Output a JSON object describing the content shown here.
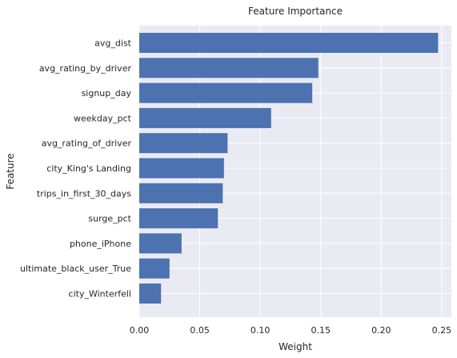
{
  "chart_data": {
    "type": "bar",
    "orientation": "horizontal",
    "title": "Feature Importance",
    "xlabel": "Weight",
    "ylabel": "Feature",
    "xlim": [
      0,
      0.258
    ],
    "xticks": [
      0.0,
      0.05,
      0.1,
      0.15,
      0.2,
      0.25
    ],
    "xtick_labels": [
      "0.00",
      "0.05",
      "0.10",
      "0.15",
      "0.20",
      "0.25"
    ],
    "grid": true,
    "colors": {
      "bar": "#4c72b0",
      "background": "#eaeaf2",
      "grid": "#ffffff"
    },
    "categories": [
      "avg_dist",
      "avg_rating_by_driver",
      "signup_day",
      "weekday_pct",
      "avg_rating_of_driver",
      "city_King's Landing",
      "trips_in_first_30_days",
      "surge_pct",
      "phone_iPhone",
      "ultimate_black_user_True",
      "city_Winterfell"
    ],
    "values": [
      0.247,
      0.148,
      0.143,
      0.109,
      0.073,
      0.07,
      0.069,
      0.065,
      0.035,
      0.025,
      0.018
    ]
  }
}
